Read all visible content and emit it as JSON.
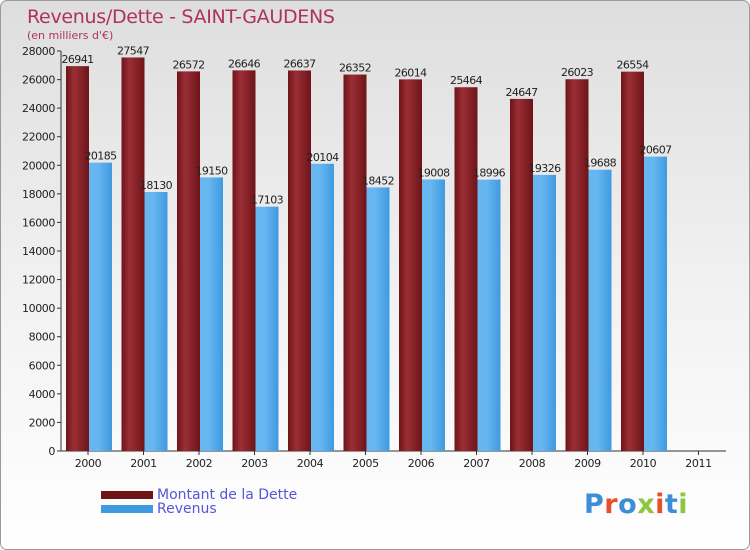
{
  "colors": {
    "debt": "#6e1419",
    "debt_light": "#9a2f35",
    "revenue": "#3f9ae0",
    "revenue_light": "#66b6f0",
    "title": "#b0325a",
    "legend_text": "#5555d8"
  },
  "logo": {
    "text": "Proxiti",
    "letters": [
      "P",
      "r",
      "o",
      "x",
      "i",
      "t",
      "i"
    ],
    "letter_colors": [
      "#3c8fd6",
      "#e6502a",
      "#3c8fd6",
      "#8cc63e",
      "#e6502a",
      "#3c8fd6",
      "#8cc63e"
    ]
  },
  "chart_data": {
    "type": "bar",
    "title": "Revenus/Dette - SAINT-GAUDENS",
    "subtitle": "(en milliers d'€)",
    "categories": [
      "2000",
      "2001",
      "2002",
      "2003",
      "2004",
      "2005",
      "2006",
      "2007",
      "2008",
      "2009",
      "2010",
      "2011"
    ],
    "series": [
      {
        "name": "Montant de la Dette",
        "values": [
          26941,
          27547,
          26572,
          26646,
          26637,
          26352,
          26014,
          25464,
          24647,
          26023,
          26554,
          null
        ],
        "labels": [
          "26941",
          "27547",
          "26572",
          "26646",
          "26637",
          "26352",
          "26014",
          "25464",
          "24647",
          "26023",
          "26554",
          ""
        ]
      },
      {
        "name": "Revenus",
        "values": [
          20185,
          18130,
          19150,
          17103,
          20104,
          18452,
          19008,
          18996,
          19326,
          19688,
          20607,
          null
        ],
        "labels": [
          "20185",
          "18130",
          "19150",
          "17103",
          "20104",
          "18452",
          "19008",
          "18996",
          "19326",
          "19688",
          "20607",
          ""
        ]
      }
    ],
    "yticks": [
      "0",
      "2000",
      "4000",
      "6000",
      "8000",
      "10000",
      "12000",
      "14000",
      "16000",
      "18000",
      "20000",
      "22000",
      "24000",
      "26000",
      "28000"
    ],
    "ylim": [
      0,
      28000
    ],
    "grid": false,
    "legend": "bottom-left"
  }
}
